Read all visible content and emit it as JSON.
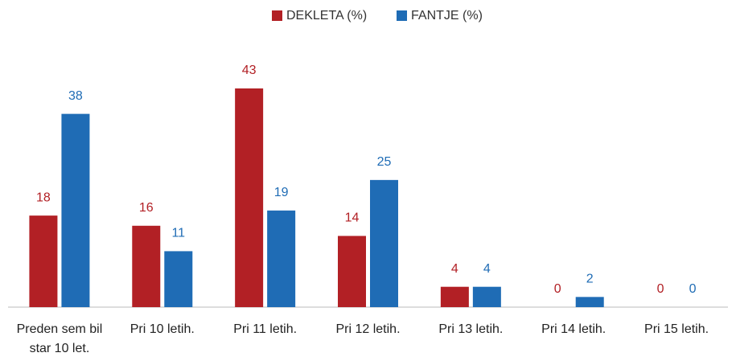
{
  "chart_data": {
    "type": "bar",
    "categories": [
      "Preden sem bil star 10 let.",
      "Pri 10 letih.",
      "Pri 11 letih.",
      "Pri 12 letih.",
      "Pri 13 letih.",
      "Pri 14 letih.",
      "Pri 15 letih."
    ],
    "series": [
      {
        "name": "DEKLETA (%)",
        "color": "#b22025",
        "values": [
          18,
          16,
          43,
          14,
          4,
          0,
          0
        ]
      },
      {
        "name": "FANTJE (%)",
        "color": "#1f6cb5",
        "values": [
          38,
          11,
          19,
          25,
          4,
          2,
          0
        ]
      }
    ],
    "legend": "top"
  }
}
